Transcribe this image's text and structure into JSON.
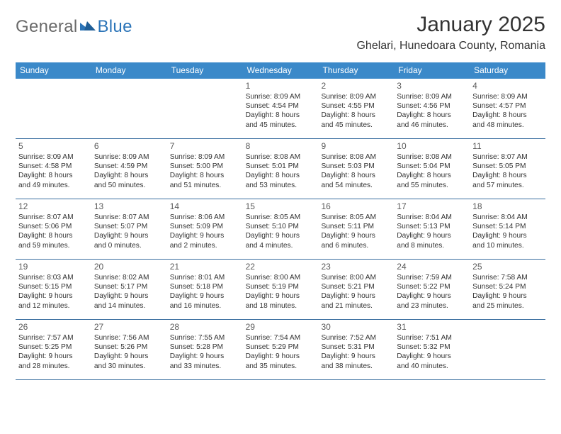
{
  "brand": {
    "text1": "General",
    "text2": "Blue"
  },
  "title": "January 2025",
  "location": "Ghelari, Hunedoara County, Romania",
  "colors": {
    "header_bg": "#3b89c9",
    "header_text": "#ffffff",
    "rule": "#3b6fa0",
    "body_text": "#333333",
    "brand_gray": "#6a6a6a",
    "brand_blue": "#2b74b8",
    "page_bg": "#ffffff"
  },
  "dows": [
    "Sunday",
    "Monday",
    "Tuesday",
    "Wednesday",
    "Thursday",
    "Friday",
    "Saturday"
  ],
  "weeks": [
    [
      null,
      null,
      null,
      {
        "n": "1",
        "sr": "Sunrise: 8:09 AM",
        "ss": "Sunset: 4:54 PM",
        "d1": "Daylight: 8 hours",
        "d2": "and 45 minutes."
      },
      {
        "n": "2",
        "sr": "Sunrise: 8:09 AM",
        "ss": "Sunset: 4:55 PM",
        "d1": "Daylight: 8 hours",
        "d2": "and 45 minutes."
      },
      {
        "n": "3",
        "sr": "Sunrise: 8:09 AM",
        "ss": "Sunset: 4:56 PM",
        "d1": "Daylight: 8 hours",
        "d2": "and 46 minutes."
      },
      {
        "n": "4",
        "sr": "Sunrise: 8:09 AM",
        "ss": "Sunset: 4:57 PM",
        "d1": "Daylight: 8 hours",
        "d2": "and 48 minutes."
      }
    ],
    [
      {
        "n": "5",
        "sr": "Sunrise: 8:09 AM",
        "ss": "Sunset: 4:58 PM",
        "d1": "Daylight: 8 hours",
        "d2": "and 49 minutes."
      },
      {
        "n": "6",
        "sr": "Sunrise: 8:09 AM",
        "ss": "Sunset: 4:59 PM",
        "d1": "Daylight: 8 hours",
        "d2": "and 50 minutes."
      },
      {
        "n": "7",
        "sr": "Sunrise: 8:09 AM",
        "ss": "Sunset: 5:00 PM",
        "d1": "Daylight: 8 hours",
        "d2": "and 51 minutes."
      },
      {
        "n": "8",
        "sr": "Sunrise: 8:08 AM",
        "ss": "Sunset: 5:01 PM",
        "d1": "Daylight: 8 hours",
        "d2": "and 53 minutes."
      },
      {
        "n": "9",
        "sr": "Sunrise: 8:08 AM",
        "ss": "Sunset: 5:03 PM",
        "d1": "Daylight: 8 hours",
        "d2": "and 54 minutes."
      },
      {
        "n": "10",
        "sr": "Sunrise: 8:08 AM",
        "ss": "Sunset: 5:04 PM",
        "d1": "Daylight: 8 hours",
        "d2": "and 55 minutes."
      },
      {
        "n": "11",
        "sr": "Sunrise: 8:07 AM",
        "ss": "Sunset: 5:05 PM",
        "d1": "Daylight: 8 hours",
        "d2": "and 57 minutes."
      }
    ],
    [
      {
        "n": "12",
        "sr": "Sunrise: 8:07 AM",
        "ss": "Sunset: 5:06 PM",
        "d1": "Daylight: 8 hours",
        "d2": "and 59 minutes."
      },
      {
        "n": "13",
        "sr": "Sunrise: 8:07 AM",
        "ss": "Sunset: 5:07 PM",
        "d1": "Daylight: 9 hours",
        "d2": "and 0 minutes."
      },
      {
        "n": "14",
        "sr": "Sunrise: 8:06 AM",
        "ss": "Sunset: 5:09 PM",
        "d1": "Daylight: 9 hours",
        "d2": "and 2 minutes."
      },
      {
        "n": "15",
        "sr": "Sunrise: 8:05 AM",
        "ss": "Sunset: 5:10 PM",
        "d1": "Daylight: 9 hours",
        "d2": "and 4 minutes."
      },
      {
        "n": "16",
        "sr": "Sunrise: 8:05 AM",
        "ss": "Sunset: 5:11 PM",
        "d1": "Daylight: 9 hours",
        "d2": "and 6 minutes."
      },
      {
        "n": "17",
        "sr": "Sunrise: 8:04 AM",
        "ss": "Sunset: 5:13 PM",
        "d1": "Daylight: 9 hours",
        "d2": "and 8 minutes."
      },
      {
        "n": "18",
        "sr": "Sunrise: 8:04 AM",
        "ss": "Sunset: 5:14 PM",
        "d1": "Daylight: 9 hours",
        "d2": "and 10 minutes."
      }
    ],
    [
      {
        "n": "19",
        "sr": "Sunrise: 8:03 AM",
        "ss": "Sunset: 5:15 PM",
        "d1": "Daylight: 9 hours",
        "d2": "and 12 minutes."
      },
      {
        "n": "20",
        "sr": "Sunrise: 8:02 AM",
        "ss": "Sunset: 5:17 PM",
        "d1": "Daylight: 9 hours",
        "d2": "and 14 minutes."
      },
      {
        "n": "21",
        "sr": "Sunrise: 8:01 AM",
        "ss": "Sunset: 5:18 PM",
        "d1": "Daylight: 9 hours",
        "d2": "and 16 minutes."
      },
      {
        "n": "22",
        "sr": "Sunrise: 8:00 AM",
        "ss": "Sunset: 5:19 PM",
        "d1": "Daylight: 9 hours",
        "d2": "and 18 minutes."
      },
      {
        "n": "23",
        "sr": "Sunrise: 8:00 AM",
        "ss": "Sunset: 5:21 PM",
        "d1": "Daylight: 9 hours",
        "d2": "and 21 minutes."
      },
      {
        "n": "24",
        "sr": "Sunrise: 7:59 AM",
        "ss": "Sunset: 5:22 PM",
        "d1": "Daylight: 9 hours",
        "d2": "and 23 minutes."
      },
      {
        "n": "25",
        "sr": "Sunrise: 7:58 AM",
        "ss": "Sunset: 5:24 PM",
        "d1": "Daylight: 9 hours",
        "d2": "and 25 minutes."
      }
    ],
    [
      {
        "n": "26",
        "sr": "Sunrise: 7:57 AM",
        "ss": "Sunset: 5:25 PM",
        "d1": "Daylight: 9 hours",
        "d2": "and 28 minutes."
      },
      {
        "n": "27",
        "sr": "Sunrise: 7:56 AM",
        "ss": "Sunset: 5:26 PM",
        "d1": "Daylight: 9 hours",
        "d2": "and 30 minutes."
      },
      {
        "n": "28",
        "sr": "Sunrise: 7:55 AM",
        "ss": "Sunset: 5:28 PM",
        "d1": "Daylight: 9 hours",
        "d2": "and 33 minutes."
      },
      {
        "n": "29",
        "sr": "Sunrise: 7:54 AM",
        "ss": "Sunset: 5:29 PM",
        "d1": "Daylight: 9 hours",
        "d2": "and 35 minutes."
      },
      {
        "n": "30",
        "sr": "Sunrise: 7:52 AM",
        "ss": "Sunset: 5:31 PM",
        "d1": "Daylight: 9 hours",
        "d2": "and 38 minutes."
      },
      {
        "n": "31",
        "sr": "Sunrise: 7:51 AM",
        "ss": "Sunset: 5:32 PM",
        "d1": "Daylight: 9 hours",
        "d2": "and 40 minutes."
      },
      null
    ]
  ]
}
